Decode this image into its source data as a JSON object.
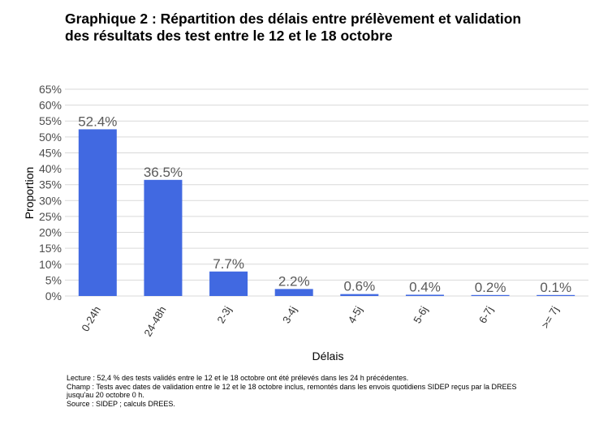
{
  "title_line1": "Graphique 2 : Répartition des délais entre prélèvement et validation",
  "title_line2": "des résultats des test entre le 12 et le 18 octobre",
  "chart_data": {
    "type": "bar",
    "categories": [
      "0-24h",
      "24-48h",
      "2-3j",
      "3-4j",
      "4-5j",
      "5-6j",
      "6-7j",
      ">= 7j"
    ],
    "values": [
      52.4,
      36.5,
      7.7,
      2.2,
      0.6,
      0.4,
      0.2,
      0.1
    ],
    "data_labels": [
      "52.4%",
      "36.5%",
      "7.7%",
      "2.2%",
      "0.6%",
      "0.4%",
      "0.2%",
      "0.1%"
    ],
    "xlabel": "Délais",
    "ylabel": "Proportion",
    "ylim": [
      0,
      65
    ],
    "yticks": [
      "0%",
      "5%",
      "10%",
      "15%",
      "20%",
      "25%",
      "30%",
      "35%",
      "40%",
      "45%",
      "50%",
      "55%",
      "60%",
      "65%"
    ],
    "grid": true,
    "bar_color": "#4169e1",
    "grid_color": "#d9d9d9",
    "label_color": "#5a5a5a"
  },
  "notes": {
    "lecture": "Lecture : 52,4 % des tests validés entre le 12 et le 18 octobre ont été prélevés dans les 24 h précédentes.",
    "champ_line1": "Champ : Tests avec dates de validation entre le 12 et le 18 octobre inclus, remontés dans les envois quotidiens SIDEP reçus par la DREES",
    "champ_line2": "jusqu'au 20 octobre 0 h.",
    "source": "Source : SIDEP ; calculs DREES."
  }
}
